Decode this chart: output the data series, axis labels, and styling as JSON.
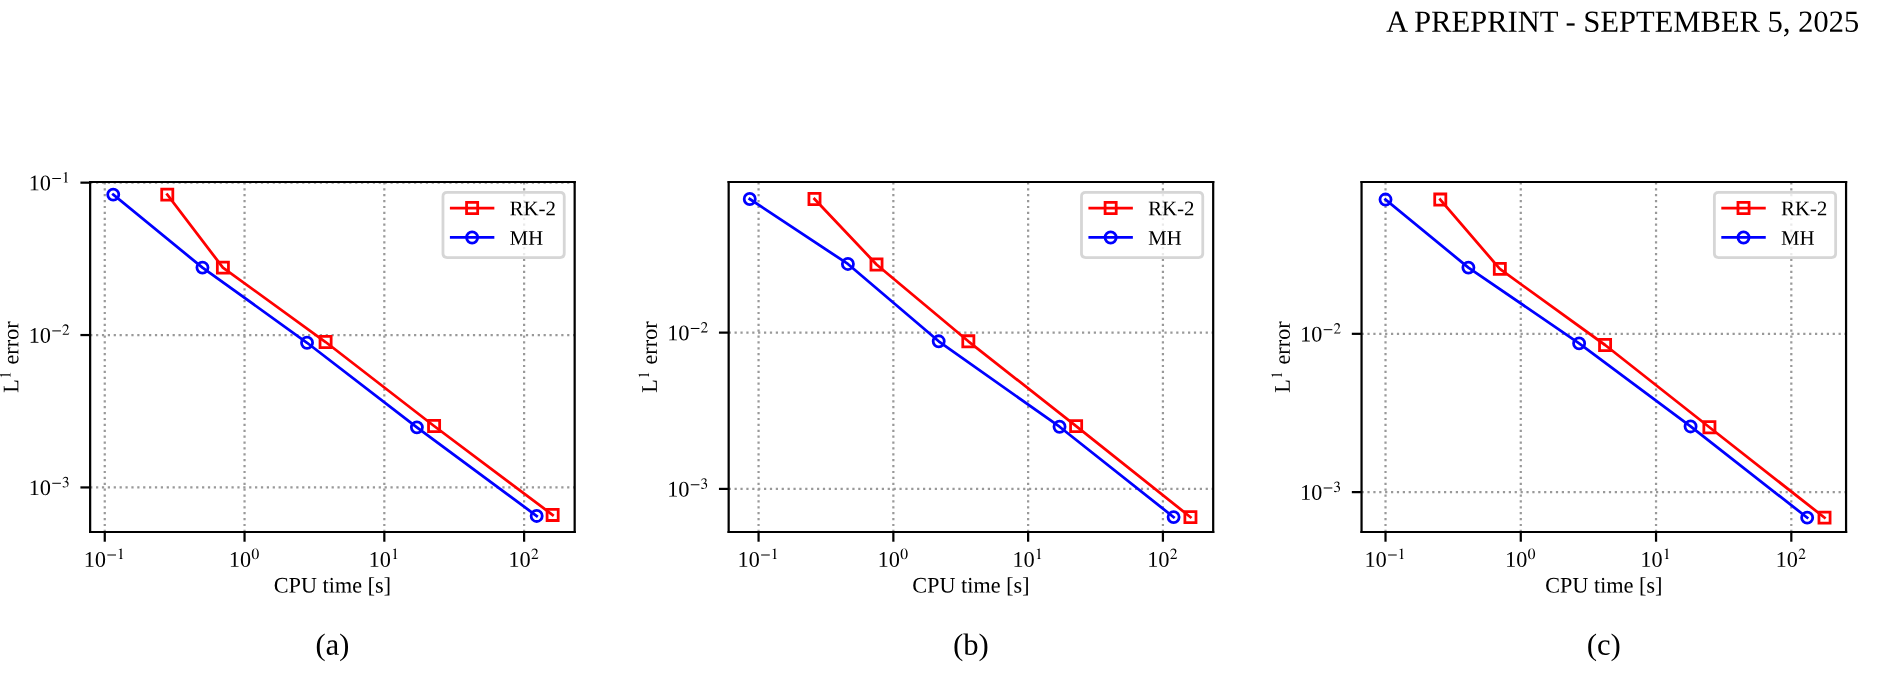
{
  "chart_data": [
    {
      "type": "line",
      "title": "(a)",
      "xlabel": "CPU time [s]",
      "ylabel": "L$^{1}$ error",
      "log": "xy",
      "grid": true,
      "legend": "top right",
      "line_style": "solid",
      "annotations": [
        "A PREPRINT - SEPTEMBER 5, 2025"
      ],
      "xlim": [
        0.0786,
        230
      ],
      "ylim": [
        0.00051,
        0.101
      ],
      "xticks": [
        {
          "value": 0.1,
          "label": "10$^{−1}$"
        },
        {
          "value": 1,
          "label": "10$^{0}$"
        },
        {
          "value": 10,
          "label": "10$^{1}$"
        },
        {
          "value": 100,
          "label": "10$^{2}$"
        }
      ],
      "yticks": [
        {
          "value": 0.001,
          "label": "10$^{−3}$"
        },
        {
          "value": 0.01,
          "label": "10$^{−2}$"
        },
        {
          "value": 0.1,
          "label": "10$^{−1}$"
        }
      ],
      "series": [
        {
          "name": "RK-2",
          "color": "#ff0000",
          "marker": "square",
          "x": [
            0.28,
            0.7,
            3.8,
            22.7,
            160
          ],
          "values": [
            0.0835,
            0.0277,
            0.009,
            0.00253,
            0.00066
          ]
        },
        {
          "name": "MH",
          "color": "#0000ff",
          "marker": "circle",
          "x": [
            0.115,
            0.5,
            2.8,
            17.1,
            123
          ],
          "values": [
            0.0835,
            0.0277,
            0.0089,
            0.00248,
            0.00065
          ]
        }
      ]
    },
    {
      "type": "line",
      "title": "(b)",
      "xlabel": "CPU time [s]",
      "ylabel": "L$^{1}$ error",
      "log": "xy",
      "grid": true,
      "legend": "top right",
      "line_style": "solid",
      "xlim": [
        0.06,
        236
      ],
      "ylim": [
        0.00053,
        0.092
      ],
      "xticks": [
        {
          "value": 0.1,
          "label": "10$^{−1}$"
        },
        {
          "value": 1,
          "label": "10$^{0}$"
        },
        {
          "value": 10,
          "label": "10$^{1}$"
        },
        {
          "value": 100,
          "label": "10$^{2}$"
        }
      ],
      "yticks": [
        {
          "value": 0.001,
          "label": "10$^{−3}$"
        },
        {
          "value": 0.01,
          "label": "10$^{−2}$"
        }
      ],
      "series": [
        {
          "name": "RK-2",
          "color": "#ff0000",
          "marker": "square",
          "x": [
            0.26,
            0.75,
            3.6,
            22.7,
            160
          ],
          "values": [
            0.0716,
            0.0273,
            0.0088,
            0.00252,
            0.00066
          ]
        },
        {
          "name": "MH",
          "color": "#0000ff",
          "marker": "circle",
          "x": [
            0.086,
            0.46,
            2.17,
            17.1,
            120
          ],
          "values": [
            0.0716,
            0.0275,
            0.0088,
            0.0025,
            0.00066
          ]
        }
      ]
    },
    {
      "type": "line",
      "title": "(c)",
      "xlabel": "CPU time [s]",
      "ylabel": "L$^{1}$ error",
      "log": "xy",
      "grid": true,
      "legend": "top right",
      "line_style": "solid",
      "xlim": [
        0.0665,
        254
      ],
      "ylim": [
        0.00056,
        0.091
      ],
      "xticks": [
        {
          "value": 0.1,
          "label": "10$^{−1}$"
        },
        {
          "value": 1,
          "label": "10$^{0}$"
        },
        {
          "value": 10,
          "label": "10$^{1}$"
        },
        {
          "value": 100,
          "label": "10$^{2}$"
        }
      ],
      "yticks": [
        {
          "value": 0.001,
          "label": "10$^{−3}$"
        },
        {
          "value": 0.01,
          "label": "10$^{−2}$"
        }
      ],
      "series": [
        {
          "name": "RK-2",
          "color": "#ff0000",
          "marker": "square",
          "x": [
            0.254,
            0.7,
            4.2,
            24.8,
            176
          ],
          "values": [
            0.0705,
            0.0257,
            0.0085,
            0.00257,
            0.00069
          ]
        },
        {
          "name": "MH",
          "color": "#0000ff",
          "marker": "circle",
          "x": [
            0.1,
            0.41,
            2.7,
            18.0,
            131
          ],
          "values": [
            0.0705,
            0.0262,
            0.0087,
            0.0026,
            0.00069
          ]
        }
      ]
    }
  ]
}
